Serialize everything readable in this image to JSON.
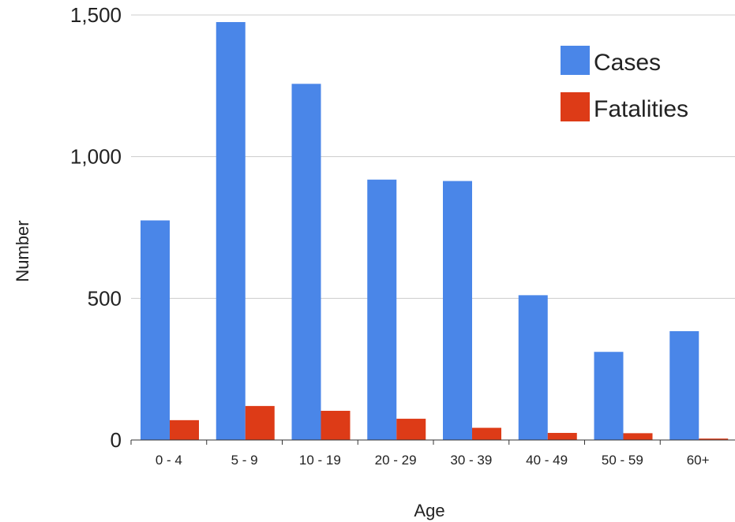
{
  "chart_data": {
    "type": "bar",
    "title": "",
    "xlabel": "Age",
    "ylabel": "Number",
    "categories": [
      "0 - 4",
      "5 - 9",
      "10 - 19",
      "20 - 29",
      "30 - 39",
      "40 - 49",
      "50 - 59",
      "60+"
    ],
    "series": [
      {
        "name": "Cases",
        "color": "#4a86e8",
        "values": [
          775,
          1475,
          1257,
          919,
          914,
          511,
          311,
          384
        ]
      },
      {
        "name": "Fatalities",
        "color": "#dd3b17",
        "values": [
          70,
          120,
          103,
          75,
          43,
          25,
          24,
          5
        ]
      }
    ],
    "ylim": [
      0,
      1500
    ],
    "yticks": [
      0,
      500,
      1000,
      1500
    ],
    "ytick_labels": [
      "0",
      "500",
      "1,000",
      "1,500"
    ],
    "grid": true,
    "legend_position": "top-right"
  }
}
